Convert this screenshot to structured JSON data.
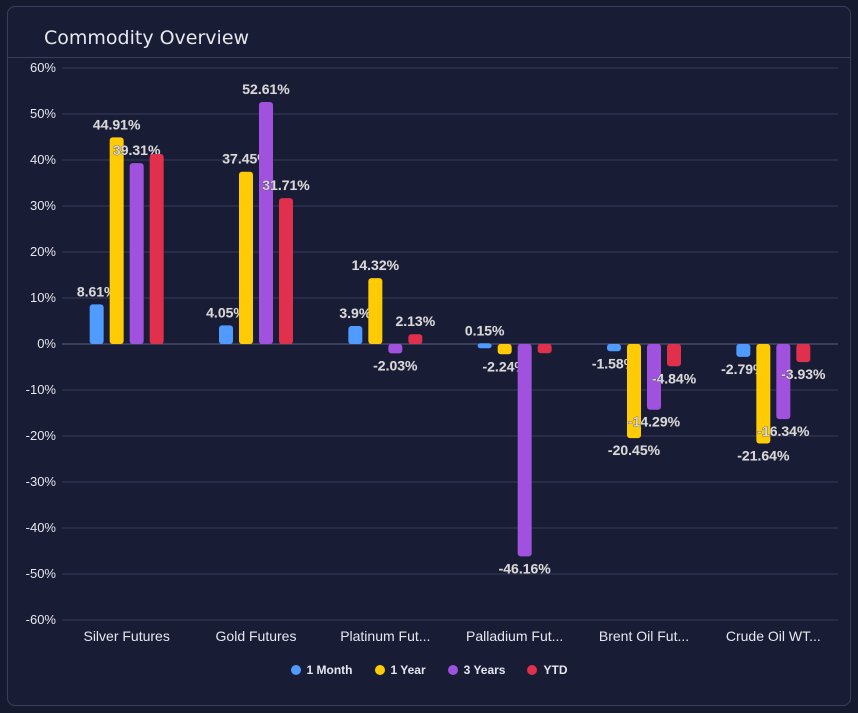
{
  "card": {
    "title": "Commodity Overview"
  },
  "chart_data": {
    "type": "bar",
    "title": "Commodity Overview",
    "categories": [
      "Silver Futures",
      "Gold Futures",
      "Platinum Fut...",
      "Palladium Fut...",
      "Brent Oil Fut...",
      "Crude Oil WT..."
    ],
    "ylim": [
      -60,
      60
    ],
    "yticks": [
      "60%",
      "50%",
      "40%",
      "30%",
      "20%",
      "10%",
      "0%",
      "-10%",
      "-20%",
      "-30%",
      "-40%",
      "-50%",
      "-60%"
    ],
    "grid": true,
    "legend_position": "bottom",
    "series": [
      {
        "name": "1 Month",
        "color": "#4f9bff",
        "values": [
          8.61,
          4.05,
          3.9,
          0.15,
          -1.58,
          -2.79
        ],
        "labels": [
          "8.61%",
          "4.05%",
          "3.9%",
          "0.15%",
          "-1.58%",
          "-2.79%"
        ]
      },
      {
        "name": "1 Year",
        "color": "#ffcb05",
        "values": [
          44.91,
          37.45,
          14.32,
          -2.24,
          -20.45,
          -21.64
        ],
        "labels": [
          "44.91%",
          "37.45%",
          "14.32%",
          "-2.24%",
          "-20.45%",
          "-21.64%"
        ]
      },
      {
        "name": "3 Years",
        "color": "#a052de",
        "values": [
          39.31,
          52.61,
          -2.03,
          -46.16,
          -14.29,
          -16.34
        ],
        "labels": [
          "39.31%",
          "52.61%",
          "-2.03%",
          "-46.16%",
          "-14.29%",
          "-16.34%"
        ]
      },
      {
        "name": "YTD",
        "color": "#e0304c",
        "values": [
          41.3,
          31.71,
          2.13,
          -2.0,
          -4.84,
          -3.93
        ],
        "labels": [
          null,
          "31.71%",
          "2.13%",
          null,
          "-4.84%",
          "-3.93%"
        ]
      }
    ]
  }
}
